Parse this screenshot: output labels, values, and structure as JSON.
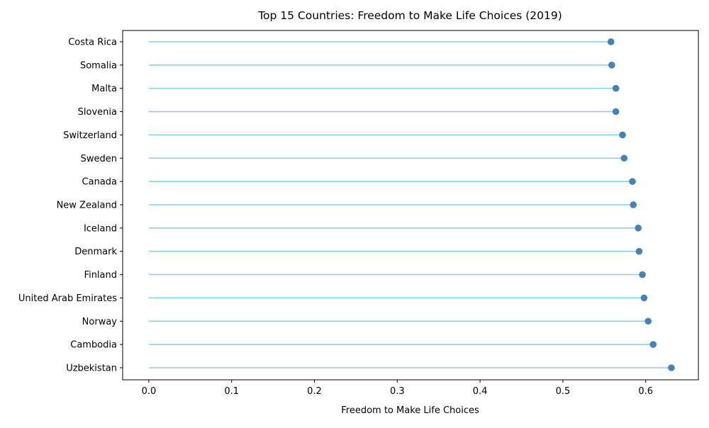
{
  "chart_data": {
    "type": "lollipop",
    "orientation": "horizontal",
    "title": "Top 15 Countries: Freedom to Make Life Choices (2019)",
    "xlabel": "Freedom to Make Life Choices",
    "ylabel": "",
    "xlim": [
      -0.0316,
      0.6636
    ],
    "xticks": [
      0.0,
      0.1,
      0.2,
      0.3,
      0.4,
      0.5,
      0.6
    ],
    "xtick_labels": [
      "0.0",
      "0.1",
      "0.2",
      "0.3",
      "0.4",
      "0.5",
      "0.6"
    ],
    "grid": false,
    "legend": "none",
    "categories": [
      "Costa Rica",
      "Somalia",
      "Malta",
      "Slovenia",
      "Switzerland",
      "Sweden",
      "Canada",
      "New Zealand",
      "Iceland",
      "Denmark",
      "Finland",
      "United Arab Emirates",
      "Norway",
      "Cambodia",
      "Uzbekistan"
    ],
    "values": [
      0.558,
      0.559,
      0.564,
      0.564,
      0.572,
      0.574,
      0.584,
      0.585,
      0.591,
      0.592,
      0.596,
      0.598,
      0.603,
      0.609,
      0.631
    ],
    "colors": {
      "stem": "#87ceeb",
      "marker": "#4682b4",
      "axis": "#000000"
    }
  }
}
